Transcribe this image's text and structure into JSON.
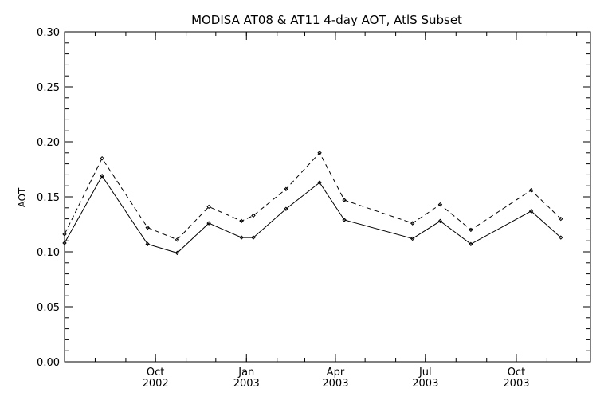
{
  "chart_data": {
    "type": "line",
    "title": "MODISA AT08 & AT11 4-day AOT, AtlS Subset",
    "xlabel": "",
    "ylabel": "AOT",
    "ylim": [
      0.0,
      0.3
    ],
    "yticks": [
      "0.00",
      "0.05",
      "0.10",
      "0.15",
      "0.20",
      "0.25",
      "0.30"
    ],
    "xlim": [
      "2002-07-01",
      "2003-12-15"
    ],
    "xticks": [
      {
        "date": "2002-10-01",
        "month": "Oct",
        "year": "2002"
      },
      {
        "date": "2003-01-01",
        "month": "Jan",
        "year": "2003"
      },
      {
        "date": "2003-04-01",
        "month": "Apr",
        "year": "2003"
      },
      {
        "date": "2003-07-01",
        "month": "Jul",
        "year": "2003"
      },
      {
        "date": "2003-10-01",
        "month": "Oct",
        "year": "2003"
      }
    ],
    "grid": false,
    "legend": "none",
    "series": [
      {
        "style": "solid",
        "color": "#000000",
        "points": [
          {
            "x": "2002-07-01",
            "y": 0.108
          },
          {
            "x": "2002-08-08",
            "y": 0.169
          },
          {
            "x": "2002-09-23",
            "y": 0.107
          },
          {
            "x": "2002-10-23",
            "y": 0.099
          },
          {
            "x": "2002-11-24",
            "y": 0.126
          },
          {
            "x": "2002-12-27",
            "y": 0.113
          },
          {
            "x": "2003-01-08",
            "y": 0.113
          },
          {
            "x": "2003-02-10",
            "y": 0.139
          },
          {
            "x": "2003-03-16",
            "y": 0.163
          },
          {
            "x": "2003-04-10",
            "y": 0.129
          },
          {
            "x": "2003-06-18",
            "y": 0.112
          },
          {
            "x": "2003-07-16",
            "y": 0.128
          },
          {
            "x": "2003-08-16",
            "y": 0.107
          },
          {
            "x": "2003-10-16",
            "y": 0.137
          },
          {
            "x": "2003-11-15",
            "y": 0.113
          }
        ]
      },
      {
        "style": "dashed",
        "color": "#000000",
        "points": [
          {
            "x": "2002-07-01",
            "y": 0.116
          },
          {
            "x": "2002-08-08",
            "y": 0.185
          },
          {
            "x": "2002-09-23",
            "y": 0.122
          },
          {
            "x": "2002-10-23",
            "y": 0.111
          },
          {
            "x": "2002-11-24",
            "y": 0.141
          },
          {
            "x": "2002-12-27",
            "y": 0.128
          },
          {
            "x": "2003-01-08",
            "y": 0.133
          },
          {
            "x": "2003-02-10",
            "y": 0.157
          },
          {
            "x": "2003-03-16",
            "y": 0.19
          },
          {
            "x": "2003-04-10",
            "y": 0.147
          },
          {
            "x": "2003-06-18",
            "y": 0.126
          },
          {
            "x": "2003-07-16",
            "y": 0.143
          },
          {
            "x": "2003-08-16",
            "y": 0.12
          },
          {
            "x": "2003-10-16",
            "y": 0.156
          },
          {
            "x": "2003-11-15",
            "y": 0.13
          }
        ]
      }
    ]
  }
}
